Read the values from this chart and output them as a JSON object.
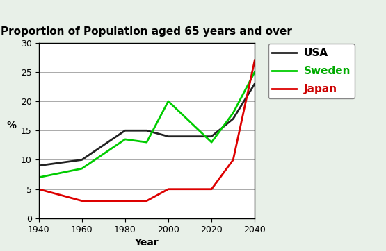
{
  "title": "Proportion of Population aged 65 years and over",
  "xlabel": "Year",
  "ylabel": "%",
  "xlim": [
    1940,
    2040
  ],
  "ylim": [
    0,
    30
  ],
  "xticks": [
    1940,
    1960,
    1980,
    2000,
    2020,
    2040
  ],
  "yticks": [
    0,
    5,
    10,
    15,
    20,
    25,
    30
  ],
  "background_color": "#e8f0e8",
  "plot_bg": "#ffffff",
  "series": [
    {
      "label": "USA",
      "color": "#222222",
      "linewidth": 2.0,
      "x": [
        1940,
        1960,
        1980,
        1990,
        2000,
        2020,
        2030,
        2040
      ],
      "y": [
        9,
        10,
        15,
        15,
        14,
        14,
        17,
        23
      ]
    },
    {
      "label": "Sweden",
      "color": "#00cc00",
      "linewidth": 2.0,
      "x": [
        1940,
        1960,
        1980,
        1990,
        2000,
        2020,
        2030,
        2040
      ],
      "y": [
        7,
        8.5,
        13.5,
        13,
        20,
        13,
        18,
        25
      ]
    },
    {
      "label": "Japan",
      "color": "#dd0000",
      "linewidth": 2.0,
      "x": [
        1940,
        1960,
        1980,
        1990,
        2000,
        2020,
        2030,
        2040
      ],
      "y": [
        5,
        3,
        3,
        3,
        5,
        5,
        10,
        27
      ]
    }
  ],
  "legend_colors": [
    "#222222",
    "#00cc00",
    "#dd0000"
  ],
  "legend_labels": [
    "USA",
    "Sweden",
    "Japan"
  ],
  "legend_label_colors": [
    "#000000",
    "#00aa00",
    "#cc0000"
  ],
  "title_fontsize": 11,
  "axis_label_fontsize": 10,
  "tick_fontsize": 9
}
